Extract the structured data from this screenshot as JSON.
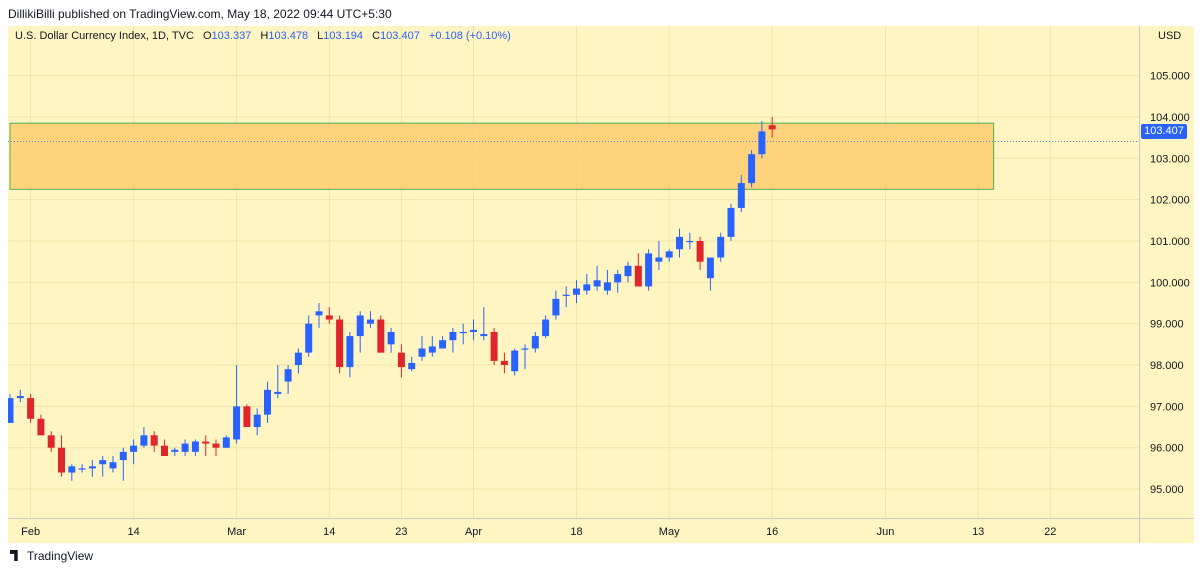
{
  "header": {
    "publish_line": "DillikiBilli published on TradingView.com, May 18, 2022 09:44 UTC+5:30"
  },
  "legend": {
    "symbol": "U.S. Dollar Currency Index, 1D, TVC",
    "open_label": "O",
    "open_value": "103.337",
    "high_label": "H",
    "high_value": "103.478",
    "low_label": "L",
    "low_value": "103.194",
    "close_label": "C",
    "close_value": "103.407",
    "change": "+0.108 (+0.10%)"
  },
  "price_axis": {
    "unit": "USD",
    "last_price": "103.407"
  },
  "footer": {
    "brand": "TradingView"
  },
  "colors": {
    "background": "#fff5c2",
    "up": "#2962ff",
    "down": "#e0262d",
    "zone_fill": "#ffcc70",
    "zone_border": "#4caf50"
  },
  "chart_data": {
    "type": "candlestick",
    "title": "U.S. Dollar Currency Index, 1D, TVC",
    "ylim": [
      94.3,
      106.2
    ],
    "yticks": [
      95,
      96,
      97,
      98,
      99,
      100,
      101,
      102,
      103,
      104,
      105
    ],
    "ytick_labels": [
      "95.000",
      "96.000",
      "97.000",
      "98.000",
      "99.000",
      "100.000",
      "101.000",
      "102.000",
      "103.000",
      "104.000",
      "105.000"
    ],
    "xticks": [
      {
        "label": "Feb",
        "idx": 2
      },
      {
        "label": "14",
        "idx": 12
      },
      {
        "label": "Mar",
        "idx": 22
      },
      {
        "label": "14",
        "idx": 31
      },
      {
        "label": "23",
        "idx": 38
      },
      {
        "label": "Apr",
        "idx": 45
      },
      {
        "label": "18",
        "idx": 55
      },
      {
        "label": "May",
        "idx": 64
      },
      {
        "label": "16",
        "idx": 74
      },
      {
        "label": "Jun",
        "idx": 85
      },
      {
        "label": "13",
        "idx": 94
      },
      {
        "label": "22",
        "idx": 101
      }
    ],
    "zone": {
      "low": 102.25,
      "high": 103.85,
      "start_idx": 0,
      "end_idx": 95.5
    },
    "last_price": 103.407,
    "candles": [
      [
        96.6,
        97.3,
        96.6,
        97.2
      ],
      [
        97.2,
        97.4,
        97.1,
        97.25
      ],
      [
        97.2,
        97.3,
        96.6,
        96.7
      ],
      [
        96.7,
        96.8,
        96.3,
        96.3
      ],
      [
        96.3,
        96.4,
        95.9,
        96.0
      ],
      [
        96.0,
        96.3,
        95.3,
        95.4
      ],
      [
        95.4,
        95.6,
        95.2,
        95.55
      ],
      [
        95.5,
        95.6,
        95.4,
        95.5
      ],
      [
        95.5,
        95.7,
        95.3,
        95.55
      ],
      [
        95.6,
        95.8,
        95.3,
        95.7
      ],
      [
        95.5,
        95.8,
        95.4,
        95.65
      ],
      [
        95.7,
        96.0,
        95.2,
        95.9
      ],
      [
        95.9,
        96.2,
        95.6,
        96.05
      ],
      [
        96.05,
        96.5,
        96.0,
        96.3
      ],
      [
        96.3,
        96.4,
        95.9,
        96.05
      ],
      [
        96.05,
        96.2,
        95.8,
        95.8
      ],
      [
        95.9,
        96.0,
        95.8,
        95.95
      ],
      [
        95.9,
        96.2,
        95.8,
        96.1
      ],
      [
        95.9,
        96.2,
        95.8,
        96.15
      ],
      [
        96.15,
        96.3,
        95.8,
        96.1
      ],
      [
        96.1,
        96.2,
        95.8,
        96.0
      ],
      [
        96.0,
        96.3,
        96.0,
        96.25
      ],
      [
        96.2,
        98.0,
        96.1,
        97.0
      ],
      [
        97.0,
        97.05,
        96.5,
        96.5
      ],
      [
        96.5,
        96.95,
        96.3,
        96.8
      ],
      [
        96.8,
        97.6,
        96.6,
        97.4
      ],
      [
        97.3,
        98.0,
        97.2,
        97.35
      ],
      [
        97.6,
        98.0,
        97.3,
        97.9
      ],
      [
        98.0,
        98.4,
        97.8,
        98.3
      ],
      [
        98.3,
        99.2,
        98.2,
        99.0
      ],
      [
        99.2,
        99.5,
        98.9,
        99.3
      ],
      [
        99.2,
        99.4,
        99.0,
        99.1
      ],
      [
        99.1,
        99.2,
        97.8,
        97.95
      ],
      [
        97.95,
        98.8,
        97.7,
        98.7
      ],
      [
        98.7,
        99.3,
        98.3,
        99.2
      ],
      [
        99.0,
        99.3,
        98.9,
        99.1
      ],
      [
        99.1,
        99.2,
        98.3,
        98.3
      ],
      [
        98.5,
        98.9,
        98.3,
        98.8
      ],
      [
        98.3,
        98.5,
        97.7,
        97.95
      ],
      [
        97.9,
        98.2,
        97.85,
        98.05
      ],
      [
        98.2,
        98.7,
        98.1,
        98.4
      ],
      [
        98.3,
        98.7,
        98.2,
        98.45
      ],
      [
        98.4,
        98.7,
        98.4,
        98.6
      ],
      [
        98.6,
        98.9,
        98.3,
        98.8
      ],
      [
        98.8,
        99.0,
        98.5,
        98.8
      ],
      [
        98.8,
        99.1,
        98.6,
        98.85
      ],
      [
        98.7,
        99.4,
        98.6,
        98.75
      ],
      [
        98.8,
        98.9,
        98.0,
        98.1
      ],
      [
        98.1,
        98.3,
        97.8,
        98.0
      ],
      [
        97.85,
        98.4,
        97.75,
        98.35
      ],
      [
        98.4,
        98.5,
        97.9,
        98.4
      ],
      [
        98.4,
        98.8,
        98.3,
        98.7
      ],
      [
        98.7,
        99.2,
        98.65,
        99.1
      ],
      [
        99.2,
        99.8,
        99.1,
        99.6
      ],
      [
        99.7,
        99.9,
        99.4,
        99.7
      ],
      [
        99.7,
        100.05,
        99.5,
        99.85
      ],
      [
        99.8,
        100.2,
        99.7,
        99.95
      ],
      [
        99.9,
        100.4,
        99.8,
        100.05
      ],
      [
        99.8,
        100.3,
        99.7,
        100.0
      ],
      [
        100.0,
        100.3,
        99.75,
        100.2
      ],
      [
        100.15,
        100.5,
        100.0,
        100.4
      ],
      [
        100.4,
        100.7,
        99.9,
        99.9
      ],
      [
        99.9,
        100.8,
        99.8,
        100.7
      ],
      [
        100.5,
        101.0,
        100.3,
        100.6
      ],
      [
        100.6,
        100.8,
        100.5,
        100.75
      ],
      [
        100.8,
        101.3,
        100.6,
        101.1
      ],
      [
        101.0,
        101.2,
        100.8,
        101.0
      ],
      [
        101.0,
        101.1,
        100.3,
        100.5
      ],
      [
        100.1,
        100.5,
        99.8,
        100.6
      ],
      [
        100.6,
        101.2,
        100.5,
        101.1
      ],
      [
        101.1,
        101.9,
        101.0,
        101.8
      ],
      [
        101.8,
        102.6,
        101.7,
        102.4
      ],
      [
        102.4,
        103.2,
        102.3,
        103.1
      ],
      [
        103.1,
        103.9,
        103.0,
        103.65
      ],
      [
        103.8,
        104.0,
        103.5,
        103.7
      ]
    ]
  }
}
